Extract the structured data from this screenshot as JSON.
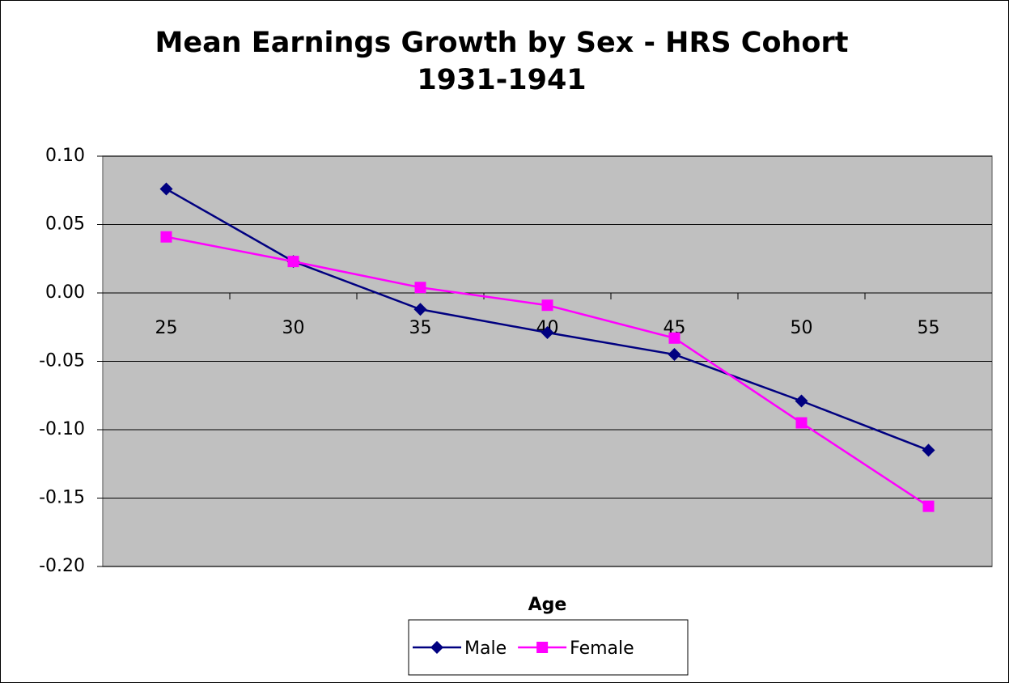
{
  "chart_data": {
    "type": "line",
    "title": "Mean Earnings Growth by Sex - HRS Cohort 1931-1941",
    "x_label": "Age",
    "categories": [
      "25",
      "30",
      "35",
      "40",
      "45",
      "50",
      "55"
    ],
    "series": [
      {
        "name": "Male",
        "color": "#000080",
        "marker": "diamond",
        "values": [
          0.076,
          0.023,
          -0.012,
          -0.029,
          -0.045,
          -0.079,
          -0.115
        ]
      },
      {
        "name": "Female",
        "color": "#ff00ff",
        "marker": "square",
        "values": [
          0.041,
          0.023,
          0.004,
          -0.009,
          -0.033,
          -0.095,
          -0.156
        ]
      }
    ],
    "ylim": [
      -0.2,
      0.1
    ],
    "yticks": [
      {
        "value": 0.1,
        "label": "0.10"
      },
      {
        "value": 0.05,
        "label": "0.05"
      },
      {
        "value": 0,
        "label": "0.00"
      },
      {
        "value": -0.05,
        "label": "-0.05"
      },
      {
        "value": -0.1,
        "label": "-0.10"
      },
      {
        "value": -0.15,
        "label": "-0.15"
      },
      {
        "value": -0.2,
        "label": "-0.20"
      }
    ],
    "grid": true,
    "plot_background": "#c0c0c0",
    "legend": "bottom"
  }
}
